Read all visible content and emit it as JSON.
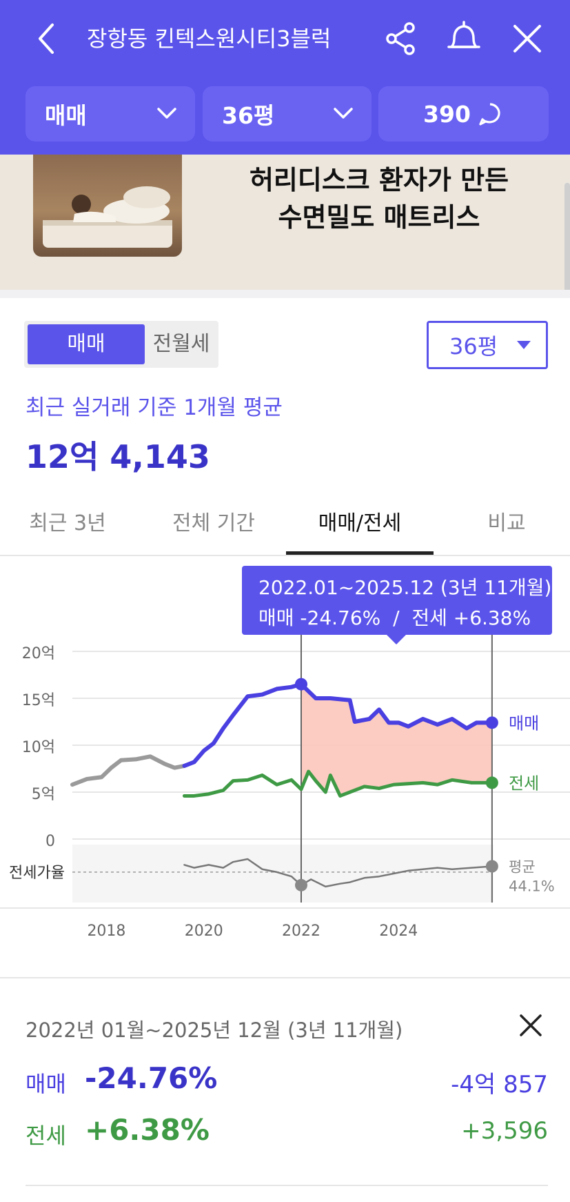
{
  "header": {
    "title": "장항동 킨텍스원시티3블럭",
    "deal_type": "매매",
    "size": "36평",
    "comments": "390",
    "accent_color": "#5b54eb"
  },
  "ad": {
    "line1": "허리디스크 환자가 만든",
    "line2": "수면밀도 매트리스"
  },
  "filter": {
    "segment_active": "매매",
    "segment_inactive": "전월세",
    "size_select": "36평"
  },
  "price": {
    "label": "최근 실거래 기준 1개월 평균",
    "value": "12억 4,143"
  },
  "tabs": [
    {
      "label": "최근 3년",
      "active": false
    },
    {
      "label": "전체 기간",
      "active": false
    },
    {
      "label": "매매/전세",
      "active": true
    },
    {
      "label": "비교",
      "active": false
    }
  ],
  "tooltip": {
    "line1": "2022.01~2025.12 (3년 11개월)",
    "line2": "매매 -24.76%  /  전세 +6.38%"
  },
  "chart_data": {
    "type": "line",
    "y_ticks": [
      "20억",
      "15억",
      "10억",
      "5억",
      "0"
    ],
    "ylim": [
      0,
      20
    ],
    "x_ticks": [
      "2018",
      "2020",
      "2022",
      "2024"
    ],
    "xlim": [
      2017.3,
      2025.95
    ],
    "ratio_axis_label": "전세가율",
    "highlight_range": [
      2022.0,
      2025.92
    ],
    "series": [
      {
        "name": "매매",
        "color": "#4a3fe0",
        "points": [
          [
            2019.6,
            7.8
          ],
          [
            2019.8,
            8.2
          ],
          [
            2020.0,
            9.4
          ],
          [
            2020.2,
            10.2
          ],
          [
            2020.4,
            11.8
          ],
          [
            2020.6,
            13.2
          ],
          [
            2020.9,
            15.2
          ],
          [
            2021.2,
            15.4
          ],
          [
            2021.5,
            16.0
          ],
          [
            2021.8,
            16.2
          ],
          [
            2022.0,
            16.5
          ],
          [
            2022.3,
            15.0
          ],
          [
            2022.6,
            15.0
          ],
          [
            2023.0,
            14.8
          ],
          [
            2023.1,
            12.5
          ],
          [
            2023.4,
            12.8
          ],
          [
            2023.6,
            13.8
          ],
          [
            2023.8,
            12.4
          ],
          [
            2024.0,
            12.4
          ],
          [
            2024.2,
            12.0
          ],
          [
            2024.5,
            12.8
          ],
          [
            2024.8,
            12.2
          ],
          [
            2025.1,
            12.8
          ],
          [
            2025.4,
            11.8
          ],
          [
            2025.6,
            12.4
          ],
          [
            2025.92,
            12.4
          ]
        ],
        "end_label": "매매"
      },
      {
        "name": "전세",
        "color": "#3f9a45",
        "points": [
          [
            2019.6,
            4.6
          ],
          [
            2019.8,
            4.6
          ],
          [
            2020.1,
            4.8
          ],
          [
            2020.4,
            5.2
          ],
          [
            2020.6,
            6.2
          ],
          [
            2020.9,
            6.3
          ],
          [
            2021.2,
            6.8
          ],
          [
            2021.5,
            5.8
          ],
          [
            2021.8,
            6.3
          ],
          [
            2022.0,
            5.3
          ],
          [
            2022.15,
            7.2
          ],
          [
            2022.3,
            6.2
          ],
          [
            2022.5,
            5.0
          ],
          [
            2022.6,
            6.8
          ],
          [
            2022.8,
            4.6
          ],
          [
            2023.0,
            5.0
          ],
          [
            2023.3,
            5.6
          ],
          [
            2023.6,
            5.4
          ],
          [
            2023.9,
            5.8
          ],
          [
            2024.2,
            5.9
          ],
          [
            2024.5,
            6.0
          ],
          [
            2024.8,
            5.8
          ],
          [
            2025.1,
            6.3
          ],
          [
            2025.5,
            6.0
          ],
          [
            2025.92,
            6.0
          ]
        ],
        "end_label": "전세"
      },
      {
        "name": "과거 매매",
        "color": "#9a9a9a",
        "points": [
          [
            2017.3,
            5.8
          ],
          [
            2017.6,
            6.4
          ],
          [
            2017.9,
            6.6
          ],
          [
            2018.1,
            7.6
          ],
          [
            2018.3,
            8.4
          ],
          [
            2018.6,
            8.5
          ],
          [
            2018.9,
            8.8
          ],
          [
            2019.2,
            8.0
          ],
          [
            2019.4,
            7.6
          ],
          [
            2019.6,
            7.8
          ]
        ]
      },
      {
        "name": "전세가율",
        "color": "#777777",
        "points": [
          [
            2019.6,
            48.0
          ],
          [
            2019.8,
            47.0
          ],
          [
            2020.1,
            48.0
          ],
          [
            2020.4,
            47.0
          ],
          [
            2020.6,
            49.0
          ],
          [
            2020.9,
            50.0
          ],
          [
            2021.2,
            46.5
          ],
          [
            2021.5,
            45.5
          ],
          [
            2021.8,
            44.0
          ],
          [
            2022.0,
            41.0
          ],
          [
            2022.2,
            43.0
          ],
          [
            2022.5,
            40.5
          ],
          [
            2022.8,
            41.5
          ],
          [
            2023.0,
            42.0
          ],
          [
            2023.3,
            43.5
          ],
          [
            2023.6,
            44.0
          ],
          [
            2023.9,
            45.0
          ],
          [
            2024.2,
            46.0
          ],
          [
            2024.5,
            46.5
          ],
          [
            2024.8,
            47.0
          ],
          [
            2025.1,
            46.5
          ],
          [
            2025.5,
            47.0
          ],
          [
            2025.92,
            47.5
          ]
        ],
        "end_label": "평균",
        "end_value": "44.1%"
      }
    ]
  },
  "summary": {
    "period": "2022년 01월~2025년 12월 (3년 11개월)",
    "sale_key": "매매",
    "sale_pct": "-24.76%",
    "sale_diff": "-4억 857",
    "jeonse_key": "전세",
    "jeonse_pct": "+6.38%",
    "jeonse_diff": "+3,596",
    "sale_color": "#4a3fe0",
    "jeonse_color": "#3f9a45"
  }
}
